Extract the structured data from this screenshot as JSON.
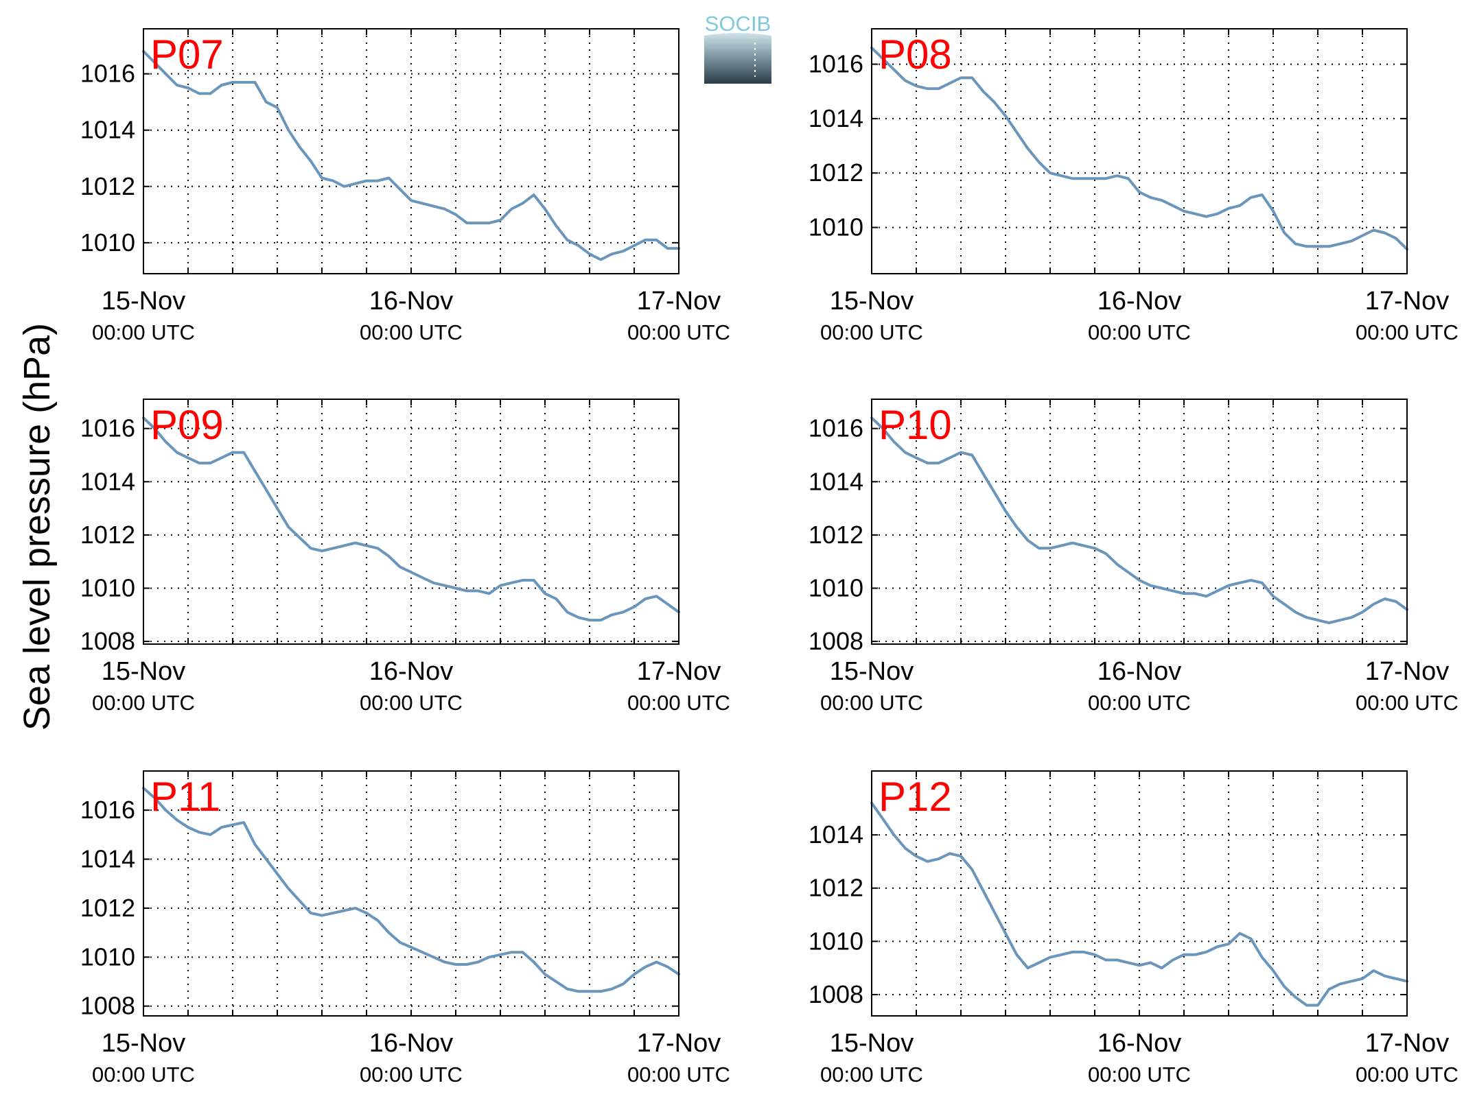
{
  "figure": {
    "ylabel": "Sea level pressure (hPa)",
    "logo_text": "SOCIB",
    "colors": {
      "line": "#6a96bc",
      "title": "#ff0000",
      "axis": "#000000",
      "logo_top": "#7ec9db",
      "logo_bottom": "#2b3c46"
    }
  },
  "chart_data": [
    {
      "type": "line",
      "title": "P07",
      "grid": true,
      "xlabel": "",
      "ylabel": "Sea level pressure (hPa)",
      "xlim": [
        0,
        48
      ],
      "ylim": [
        1008.9,
        1017.6
      ],
      "yticks": [
        1010,
        1012,
        1014,
        1016
      ],
      "xticks": [
        {
          "x": 0,
          "date": "15-Nov",
          "time": "00:00 UTC"
        },
        {
          "x": 24,
          "date": "16-Nov",
          "time": "00:00 UTC"
        },
        {
          "x": 48,
          "date": "17-Nov",
          "time": "00:00 UTC"
        }
      ],
      "x": [
        0,
        1,
        2,
        3,
        4,
        5,
        6,
        7,
        8,
        9,
        10,
        11,
        12,
        13,
        14,
        15,
        16,
        17,
        18,
        19,
        20,
        21,
        22,
        23,
        24,
        25,
        26,
        27,
        28,
        29,
        30,
        31,
        32,
        33,
        34,
        35,
        36,
        37,
        38,
        39,
        40,
        41,
        42,
        43,
        44,
        45,
        46,
        47,
        48
      ],
      "y": [
        1016.8,
        1016.4,
        1016.0,
        1015.6,
        1015.5,
        1015.3,
        1015.3,
        1015.6,
        1015.7,
        1015.7,
        1015.7,
        1015.0,
        1014.8,
        1014.0,
        1013.4,
        1012.9,
        1012.3,
        1012.2,
        1012.0,
        1012.1,
        1012.2,
        1012.2,
        1012.3,
        1011.9,
        1011.5,
        1011.4,
        1011.3,
        1011.2,
        1011.0,
        1010.7,
        1010.7,
        1010.7,
        1010.8,
        1011.2,
        1011.4,
        1011.7,
        1011.2,
        1010.6,
        1010.1,
        1009.9,
        1009.6,
        1009.4,
        1009.6,
        1009.7,
        1009.9,
        1010.1,
        1010.1,
        1009.8,
        1009.8
      ],
      "series": [
        {
          "name": "",
          "color": "#6a96bc"
        }
      ]
    },
    {
      "type": "line",
      "title": "P08",
      "grid": true,
      "xlabel": "",
      "ylabel": "Sea level pressure (hPa)",
      "xlim": [
        0,
        48
      ],
      "ylim": [
        1008.3,
        1017.3
      ],
      "yticks": [
        1010,
        1012,
        1014,
        1016
      ],
      "xticks": [
        {
          "x": 0,
          "date": "15-Nov",
          "time": "00:00 UTC"
        },
        {
          "x": 24,
          "date": "16-Nov",
          "time": "00:00 UTC"
        },
        {
          "x": 48,
          "date": "17-Nov",
          "time": "00:00 UTC"
        }
      ],
      "x": [
        0,
        1,
        2,
        3,
        4,
        5,
        6,
        7,
        8,
        9,
        10,
        11,
        12,
        13,
        14,
        15,
        16,
        17,
        18,
        19,
        20,
        21,
        22,
        23,
        24,
        25,
        26,
        27,
        28,
        29,
        30,
        31,
        32,
        33,
        34,
        35,
        36,
        37,
        38,
        39,
        40,
        41,
        42,
        43,
        44,
        45,
        46,
        47,
        48
      ],
      "y": [
        1016.6,
        1016.2,
        1015.8,
        1015.4,
        1015.2,
        1015.1,
        1015.1,
        1015.3,
        1015.5,
        1015.5,
        1015.0,
        1014.6,
        1014.1,
        1013.5,
        1012.9,
        1012.4,
        1012.0,
        1011.9,
        1011.8,
        1011.8,
        1011.8,
        1011.8,
        1011.9,
        1011.8,
        1011.3,
        1011.1,
        1011.0,
        1010.8,
        1010.6,
        1010.5,
        1010.4,
        1010.5,
        1010.7,
        1010.8,
        1011.1,
        1011.2,
        1010.6,
        1009.8,
        1009.4,
        1009.3,
        1009.3,
        1009.3,
        1009.4,
        1009.5,
        1009.7,
        1009.9,
        1009.8,
        1009.6,
        1009.2
      ],
      "series": [
        {
          "name": "",
          "color": "#6a96bc"
        }
      ]
    },
    {
      "type": "line",
      "title": "P09",
      "grid": true,
      "xlabel": "",
      "ylabel": "Sea level pressure (hPa)",
      "xlim": [
        0,
        48
      ],
      "ylim": [
        1007.9,
        1017.1
      ],
      "yticks": [
        1008,
        1010,
        1012,
        1014,
        1016
      ],
      "xticks": [
        {
          "x": 0,
          "date": "15-Nov",
          "time": "00:00 UTC"
        },
        {
          "x": 24,
          "date": "16-Nov",
          "time": "00:00 UTC"
        },
        {
          "x": 48,
          "date": "17-Nov",
          "time": "00:00 UTC"
        }
      ],
      "x": [
        0,
        1,
        2,
        3,
        4,
        5,
        6,
        7,
        8,
        9,
        10,
        11,
        12,
        13,
        14,
        15,
        16,
        17,
        18,
        19,
        20,
        21,
        22,
        23,
        24,
        25,
        26,
        27,
        28,
        29,
        30,
        31,
        32,
        33,
        34,
        35,
        36,
        37,
        38,
        39,
        40,
        41,
        42,
        43,
        44,
        45,
        46,
        47,
        48
      ],
      "y": [
        1016.4,
        1016.0,
        1015.5,
        1015.1,
        1014.9,
        1014.7,
        1014.7,
        1014.9,
        1015.1,
        1015.1,
        1014.4,
        1013.7,
        1013.0,
        1012.3,
        1011.9,
        1011.5,
        1011.4,
        1011.5,
        1011.6,
        1011.7,
        1011.6,
        1011.5,
        1011.2,
        1010.8,
        1010.6,
        1010.4,
        1010.2,
        1010.1,
        1010.0,
        1009.9,
        1009.9,
        1009.8,
        1010.1,
        1010.2,
        1010.3,
        1010.3,
        1009.8,
        1009.6,
        1009.1,
        1008.9,
        1008.8,
        1008.8,
        1009.0,
        1009.1,
        1009.3,
        1009.6,
        1009.7,
        1009.4,
        1009.1
      ],
      "series": [
        {
          "name": "",
          "color": "#6a96bc"
        }
      ]
    },
    {
      "type": "line",
      "title": "P10",
      "grid": true,
      "xlabel": "",
      "ylabel": "Sea level pressure (hPa)",
      "xlim": [
        0,
        48
      ],
      "ylim": [
        1007.9,
        1017.1
      ],
      "yticks": [
        1008,
        1010,
        1012,
        1014,
        1016
      ],
      "xticks": [
        {
          "x": 0,
          "date": "15-Nov",
          "time": "00:00 UTC"
        },
        {
          "x": 24,
          "date": "16-Nov",
          "time": "00:00 UTC"
        },
        {
          "x": 48,
          "date": "17-Nov",
          "time": "00:00 UTC"
        }
      ],
      "x": [
        0,
        1,
        2,
        3,
        4,
        5,
        6,
        7,
        8,
        9,
        10,
        11,
        12,
        13,
        14,
        15,
        16,
        17,
        18,
        19,
        20,
        21,
        22,
        23,
        24,
        25,
        26,
        27,
        28,
        29,
        30,
        31,
        32,
        33,
        34,
        35,
        36,
        37,
        38,
        39,
        40,
        41,
        42,
        43,
        44,
        45,
        46,
        47,
        48
      ],
      "y": [
        1016.4,
        1016.0,
        1015.5,
        1015.1,
        1014.9,
        1014.7,
        1014.7,
        1014.9,
        1015.1,
        1015.0,
        1014.3,
        1013.6,
        1012.9,
        1012.3,
        1011.8,
        1011.5,
        1011.5,
        1011.6,
        1011.7,
        1011.6,
        1011.5,
        1011.3,
        1010.9,
        1010.6,
        1010.3,
        1010.1,
        1010.0,
        1009.9,
        1009.8,
        1009.8,
        1009.7,
        1009.9,
        1010.1,
        1010.2,
        1010.3,
        1010.2,
        1009.7,
        1009.4,
        1009.1,
        1008.9,
        1008.8,
        1008.7,
        1008.8,
        1008.9,
        1009.1,
        1009.4,
        1009.6,
        1009.5,
        1009.2
      ],
      "series": [
        {
          "name": "",
          "color": "#6a96bc"
        }
      ]
    },
    {
      "type": "line",
      "title": "P11",
      "grid": true,
      "xlabel": "",
      "ylabel": "Sea level pressure (hPa)",
      "xlim": [
        0,
        48
      ],
      "ylim": [
        1007.6,
        1017.6
      ],
      "yticks": [
        1008,
        1010,
        1012,
        1014,
        1016
      ],
      "xticks": [
        {
          "x": 0,
          "date": "15-Nov",
          "time": "00:00 UTC"
        },
        {
          "x": 24,
          "date": "16-Nov",
          "time": "00:00 UTC"
        },
        {
          "x": 48,
          "date": "17-Nov",
          "time": "00:00 UTC"
        }
      ],
      "x": [
        0,
        1,
        2,
        3,
        4,
        5,
        6,
        7,
        8,
        9,
        10,
        11,
        12,
        13,
        14,
        15,
        16,
        17,
        18,
        19,
        20,
        21,
        22,
        23,
        24,
        25,
        26,
        27,
        28,
        29,
        30,
        31,
        32,
        33,
        34,
        35,
        36,
        37,
        38,
        39,
        40,
        41,
        42,
        43,
        44,
        45,
        46,
        47,
        48
      ],
      "y": [
        1016.9,
        1016.5,
        1016.0,
        1015.6,
        1015.3,
        1015.1,
        1015.0,
        1015.3,
        1015.4,
        1015.5,
        1014.6,
        1014.0,
        1013.4,
        1012.8,
        1012.3,
        1011.8,
        1011.7,
        1011.8,
        1011.9,
        1012.0,
        1011.8,
        1011.5,
        1011.0,
        1010.6,
        1010.4,
        1010.2,
        1010.0,
        1009.8,
        1009.7,
        1009.7,
        1009.8,
        1010.0,
        1010.1,
        1010.2,
        1010.2,
        1009.8,
        1009.3,
        1009.0,
        1008.7,
        1008.6,
        1008.6,
        1008.6,
        1008.7,
        1008.9,
        1009.3,
        1009.6,
        1009.8,
        1009.6,
        1009.3
      ],
      "series": [
        {
          "name": "",
          "color": "#6a96bc"
        }
      ]
    },
    {
      "type": "line",
      "title": "P12",
      "grid": true,
      "xlabel": "",
      "ylabel": "Sea level pressure (hPa)",
      "xlim": [
        0,
        48
      ],
      "ylim": [
        1007.2,
        1016.4
      ],
      "yticks": [
        1008,
        1010,
        1012,
        1014
      ],
      "xticks": [
        {
          "x": 0,
          "date": "15-Nov",
          "time": "00:00 UTC"
        },
        {
          "x": 24,
          "date": "16-Nov",
          "time": "00:00 UTC"
        },
        {
          "x": 48,
          "date": "17-Nov",
          "time": "00:00 UTC"
        }
      ],
      "x": [
        0,
        1,
        2,
        3,
        4,
        5,
        6,
        7,
        8,
        9,
        10,
        11,
        12,
        13,
        14,
        15,
        16,
        17,
        18,
        19,
        20,
        21,
        22,
        23,
        24,
        25,
        26,
        27,
        28,
        29,
        30,
        31,
        32,
        33,
        34,
        35,
        36,
        37,
        38,
        39,
        40,
        41,
        42,
        43,
        44,
        45,
        46,
        47,
        48
      ],
      "y": [
        1015.2,
        1014.6,
        1014.0,
        1013.5,
        1013.2,
        1013.0,
        1013.1,
        1013.3,
        1013.2,
        1012.7,
        1011.9,
        1011.1,
        1010.3,
        1009.5,
        1009.0,
        1009.2,
        1009.4,
        1009.5,
        1009.6,
        1009.6,
        1009.5,
        1009.3,
        1009.3,
        1009.2,
        1009.1,
        1009.2,
        1009.0,
        1009.3,
        1009.5,
        1009.5,
        1009.6,
        1009.8,
        1009.9,
        1010.3,
        1010.1,
        1009.4,
        1008.9,
        1008.3,
        1007.9,
        1007.6,
        1007.6,
        1008.2,
        1008.4,
        1008.5,
        1008.6,
        1008.9,
        1008.7,
        1008.6,
        1008.5
      ],
      "series": [
        {
          "name": "",
          "color": "#6a96bc"
        }
      ]
    }
  ]
}
